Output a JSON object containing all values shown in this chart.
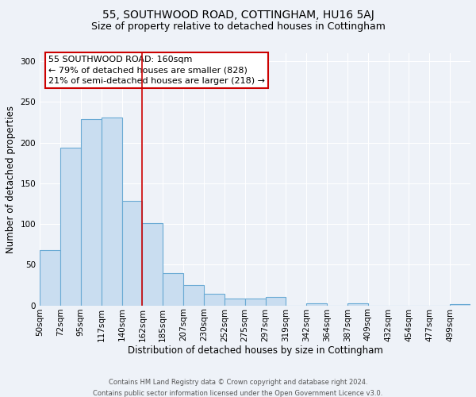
{
  "title": "55, SOUTHWOOD ROAD, COTTINGHAM, HU16 5AJ",
  "subtitle": "Size of property relative to detached houses in Cottingham",
  "xlabel": "Distribution of detached houses by size in Cottingham",
  "ylabel": "Number of detached properties",
  "bin_labels": [
    "50sqm",
    "72sqm",
    "95sqm",
    "117sqm",
    "140sqm",
    "162sqm",
    "185sqm",
    "207sqm",
    "230sqm",
    "252sqm",
    "275sqm",
    "297sqm",
    "319sqm",
    "342sqm",
    "364sqm",
    "387sqm",
    "409sqm",
    "432sqm",
    "454sqm",
    "477sqm",
    "499sqm"
  ],
  "bar_values": [
    68,
    194,
    229,
    231,
    128,
    101,
    40,
    25,
    14,
    8,
    8,
    10,
    0,
    3,
    0,
    3,
    0,
    0,
    0,
    0,
    2
  ],
  "bar_color": "#c9ddf0",
  "bar_edgecolor": "#6aaad4",
  "ylim": [
    0,
    310
  ],
  "yticks": [
    0,
    50,
    100,
    150,
    200,
    250,
    300
  ],
  "vline_x_index": 5,
  "vline_color": "#cc0000",
  "annotation_title": "55 SOUTHWOOD ROAD: 160sqm",
  "annotation_line1": "← 79% of detached houses are smaller (828)",
  "annotation_line2": "21% of semi-detached houses are larger (218) →",
  "annotation_box_edgecolor": "#cc0000",
  "footer_line1": "Contains HM Land Registry data © Crown copyright and database right 2024.",
  "footer_line2": "Contains public sector information licensed under the Open Government Licence v3.0.",
  "background_color": "#eef2f8",
  "grid_color": "#ffffff",
  "title_fontsize": 10,
  "subtitle_fontsize": 9,
  "axis_label_fontsize": 8.5,
  "tick_fontsize": 7.5,
  "annot_fontsize": 8,
  "footer_fontsize": 6
}
